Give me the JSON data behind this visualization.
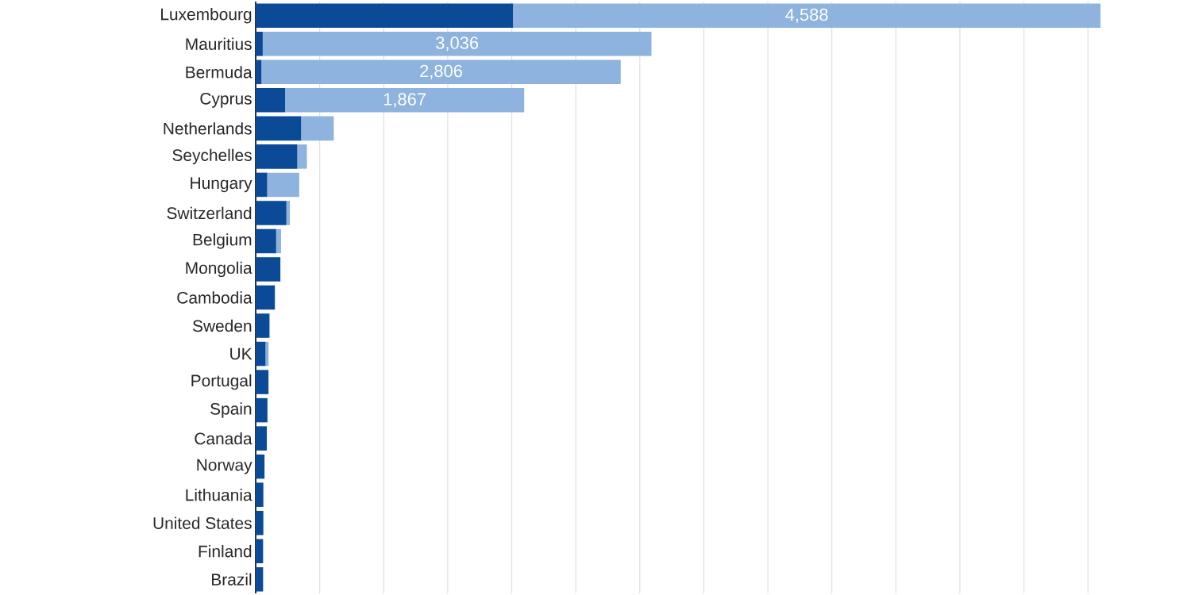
{
  "chart_data": {
    "type": "bar",
    "orientation": "horizontal",
    "stacked": true,
    "categories": [
      "Luxembourg",
      "Mauritius",
      "Bermuda",
      "Cyprus",
      "Netherlands",
      "Seychelles",
      "Hungary",
      "Switzerland",
      "Belgium",
      "Mongolia",
      "Cambodia",
      "Sweden",
      "UK",
      "Portugal",
      "Spain",
      "Canada",
      "Norway",
      "Lithuania",
      "United States",
      "Finland",
      "Brazil"
    ],
    "series": [
      {
        "color": "#0b4a97",
        "values": [
          2010,
          55,
          45,
          230,
          355,
          325,
          90,
          240,
          160,
          193,
          150,
          105,
          77,
          100,
          92,
          87,
          69,
          60,
          60,
          58,
          58
        ]
      },
      {
        "color": "#8db3de",
        "values": [
          4588,
          3036,
          2806,
          1867,
          255,
          75,
          250,
          27,
          38,
          null,
          null,
          7,
          24,
          null,
          null,
          null,
          null,
          null,
          null,
          null,
          null
        ],
        "value_labels": [
          "4,588",
          "3,036",
          "2,806",
          "1,867",
          null,
          null,
          null,
          null,
          null,
          null,
          null,
          null,
          null,
          null,
          null,
          null,
          null,
          null,
          null,
          null,
          null
        ]
      }
    ],
    "grid": "x",
    "tick_labels": "y"
  }
}
